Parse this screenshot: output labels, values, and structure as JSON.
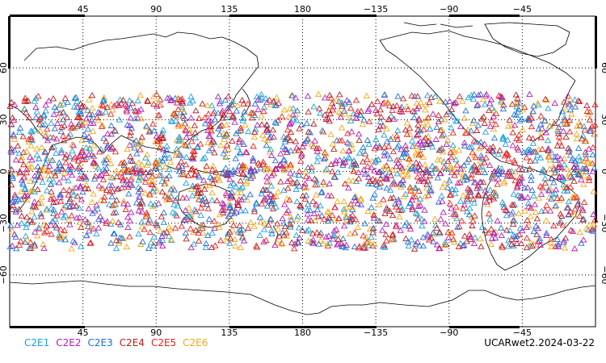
{
  "map": {
    "lon_ticks_labels": [
      "45",
      "90",
      "135",
      "180",
      "−135",
      "−90",
      "−45"
    ],
    "lat_ticks_labels": [
      "60",
      "30",
      "0",
      "−30",
      "−60"
    ],
    "lon_ticks_labels_right": [
      "60",
      "30",
      "0",
      "−30",
      "−60"
    ],
    "center_longitude": 180,
    "lat_range": [
      -90,
      90
    ],
    "grid": "dotted",
    "marker": "triangle-open",
    "observation_band_lat": [
      -45,
      45
    ]
  },
  "legend": [
    {
      "label": "C2E1",
      "color": "#1ea0d8"
    },
    {
      "label": "C2E2",
      "color": "#b21db8"
    },
    {
      "label": "C2E3",
      "color": "#1f6fd6"
    },
    {
      "label": "C2E4",
      "color": "#b81e1e"
    },
    {
      "label": "C2E5",
      "color": "#e8201e"
    },
    {
      "label": "C2E6",
      "color": "#f0a81a"
    }
  ],
  "stamp": "UCARwet2.2024-03-22"
}
